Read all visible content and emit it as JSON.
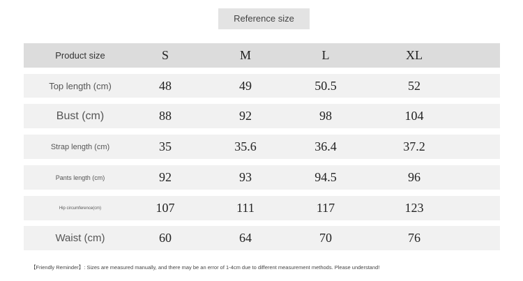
{
  "title": "Reference size",
  "table": {
    "header": [
      "Product size",
      "S",
      "M",
      "L",
      "XL"
    ],
    "rows": [
      [
        "Top length (cm)",
        48,
        49,
        50.5,
        52
      ],
      [
        "Bust (cm)",
        88,
        92,
        98,
        104
      ],
      [
        "Strap length (cm)",
        35,
        35.6,
        36.4,
        37.2
      ],
      [
        "Pants length (cm)",
        92,
        93,
        94.5,
        96
      ],
      [
        "Hip circumference(cm)",
        107,
        111,
        117,
        123
      ],
      [
        "Waist (cm)",
        60,
        64,
        70,
        76
      ]
    ]
  },
  "note": "【Friendly Reminder】: Sizes are measured manually, and there may be an error of 1-4cm due to different measurement methods. Please understand!"
}
